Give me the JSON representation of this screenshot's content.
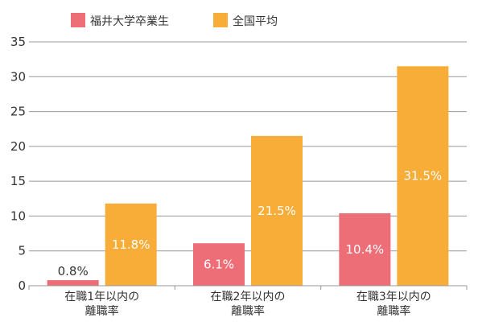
{
  "chart_data": {
    "type": "bar",
    "categories": [
      [
        "在職1年以内の",
        "離職率"
      ],
      [
        "在職2年以内の",
        "離職率"
      ],
      [
        "在職3年以内の",
        "離職率"
      ]
    ],
    "series": [
      {
        "name": "福井大学卒業生",
        "values": [
          0.8,
          6.1,
          10.4
        ],
        "labels": [
          "0.8%",
          "6.1%",
          "10.4%"
        ],
        "color": "#ee6e78"
      },
      {
        "name": "全国平均",
        "values": [
          11.8,
          21.5,
          31.5
        ],
        "labels": [
          "11.8%",
          "21.5%",
          "31.5%"
        ],
        "color": "#f7ad38"
      }
    ],
    "ylim": [
      0,
      35
    ],
    "yticks": [
      0,
      5,
      10,
      15,
      20,
      25,
      30,
      35
    ],
    "grid": true,
    "legend": "top-left",
    "label_color_inside": "#ffffff",
    "label_color_outside": "#333333",
    "grid_color": "#999999"
  }
}
